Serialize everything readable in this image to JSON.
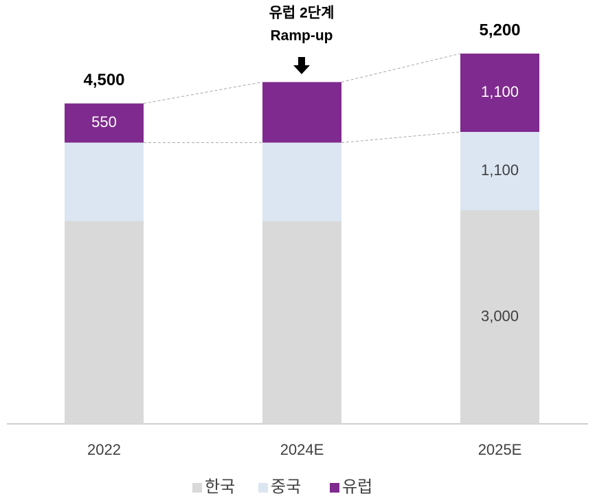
{
  "chart_data": {
    "type": "stacked_bar",
    "categories": [
      "2022",
      "2024E",
      "2025E"
    ],
    "series": [
      {
        "name": "한국",
        "color": "#d9d9d9",
        "values": [
          2850,
          2850,
          3000
        ],
        "value_labels": [
          null,
          null,
          "3,000"
        ]
      },
      {
        "name": "중국",
        "color": "#dce6f2",
        "values": [
          1100,
          1100,
          1100
        ],
        "value_labels": [
          null,
          null,
          "1,100"
        ]
      },
      {
        "name": "유럽",
        "color": "#7f2a8e",
        "values": [
          550,
          850,
          1100
        ],
        "value_labels": [
          "550",
          null,
          "1,100"
        ]
      }
    ],
    "totals": [
      4500,
      null,
      5200
    ],
    "total_labels": [
      "4,500",
      null,
      "5,200"
    ],
    "annotation": [
      "유럽 2단계",
      "Ramp-up"
    ]
  }
}
